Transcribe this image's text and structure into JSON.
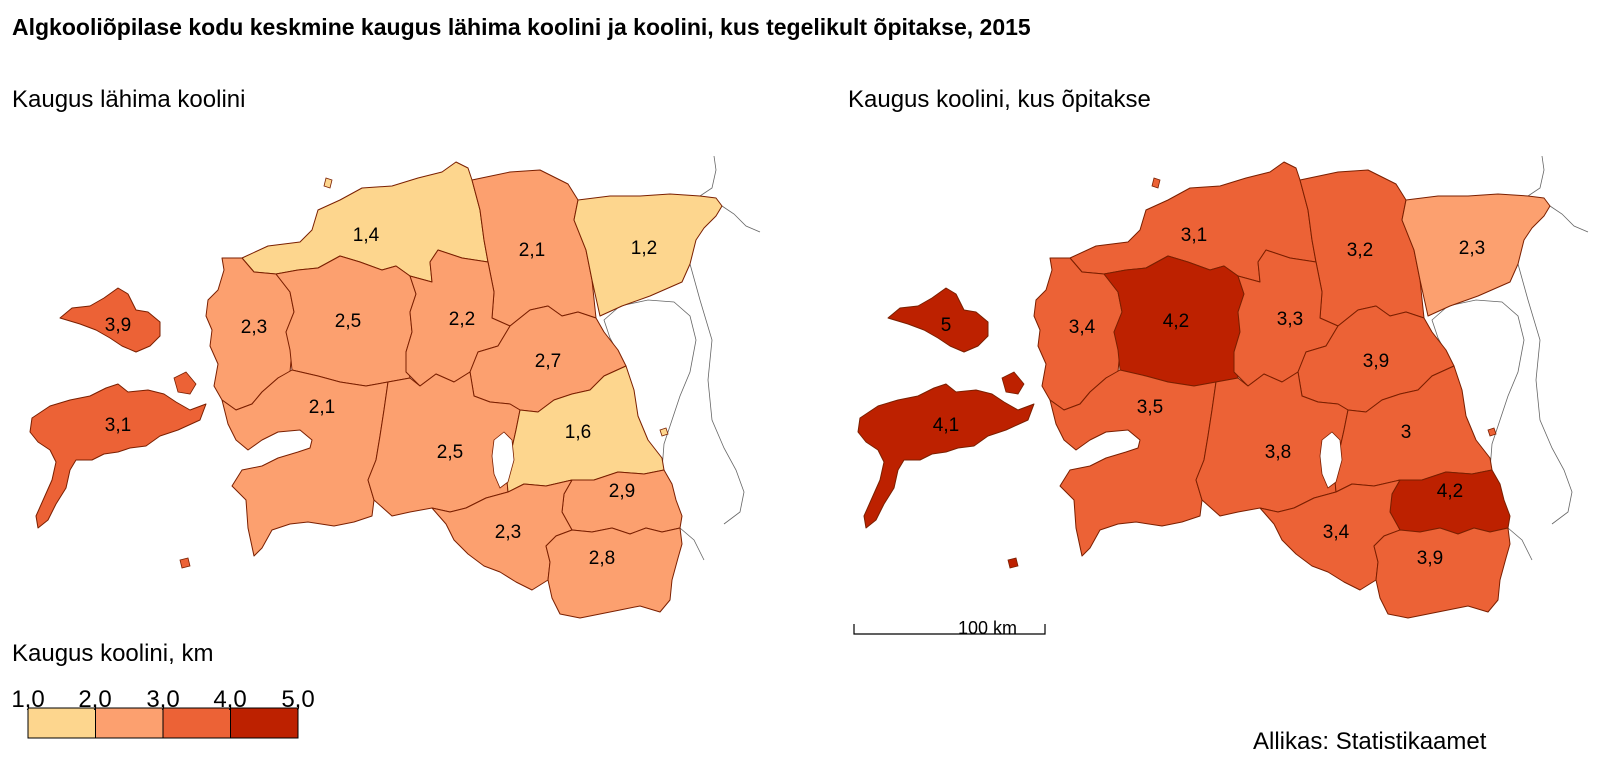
{
  "title": "Algkooliõpilase kodu keskmine kaugus lähima koolini ja koolini, kus tegelikult õpitakse, 2015",
  "colors": {
    "c1": "#fdd68e",
    "c2": "#fca06f",
    "c3": "#ec6236",
    "c4": "#bd2100",
    "border": "#7a1f00",
    "coast": "#666666"
  },
  "maps": [
    {
      "subtitle": "Kaugus lähima koolini",
      "regions": [
        {
          "name": "Harju",
          "value": "1,4",
          "class": 1
        },
        {
          "name": "Lääne-Viru",
          "value": "2,1",
          "class": 2
        },
        {
          "name": "Ida-Viru",
          "value": "1,2",
          "class": 1
        },
        {
          "name": "Hiiu",
          "value": "3,9",
          "class": 3
        },
        {
          "name": "Lääne",
          "value": "2,3",
          "class": 2
        },
        {
          "name": "Rapla",
          "value": "2,5",
          "class": 2
        },
        {
          "name": "Järva",
          "value": "2,2",
          "class": 2
        },
        {
          "name": "Jõgeva",
          "value": "2,7",
          "class": 2
        },
        {
          "name": "Saare",
          "value": "3,1",
          "class": 3
        },
        {
          "name": "Pärnu",
          "value": "2,1",
          "class": 2
        },
        {
          "name": "Viljandi",
          "value": "2,5",
          "class": 2
        },
        {
          "name": "Tartu",
          "value": "1,6",
          "class": 1
        },
        {
          "name": "Põlva",
          "value": "2,9",
          "class": 2
        },
        {
          "name": "Valga",
          "value": "2,3",
          "class": 2
        },
        {
          "name": "Võru",
          "value": "2,8",
          "class": 2
        }
      ]
    },
    {
      "subtitle": "Kaugus koolini, kus õpitakse",
      "regions": [
        {
          "name": "Harju",
          "value": "3,1",
          "class": 3
        },
        {
          "name": "Lääne-Viru",
          "value": "3,2",
          "class": 3
        },
        {
          "name": "Ida-Viru",
          "value": "2,3",
          "class": 2
        },
        {
          "name": "Hiiu",
          "value": "5",
          "class": 4
        },
        {
          "name": "Lääne",
          "value": "3,4",
          "class": 3
        },
        {
          "name": "Rapla",
          "value": "4,2",
          "class": 4
        },
        {
          "name": "Järva",
          "value": "3,3",
          "class": 3
        },
        {
          "name": "Jõgeva",
          "value": "3,9",
          "class": 3
        },
        {
          "name": "Saare",
          "value": "4,1",
          "class": 4
        },
        {
          "name": "Pärnu",
          "value": "3,5",
          "class": 3
        },
        {
          "name": "Viljandi",
          "value": "3,8",
          "class": 3
        },
        {
          "name": "Tartu",
          "value": "3",
          "class": 3
        },
        {
          "name": "Põlva",
          "value": "4,2",
          "class": 4
        },
        {
          "name": "Valga",
          "value": "3,4",
          "class": 3
        },
        {
          "name": "Võru",
          "value": "3,9",
          "class": 3
        }
      ]
    }
  ],
  "legend": {
    "title": "Kaugus koolini, km",
    "ticks": [
      "1,0",
      "2,0",
      "3,0",
      "4,0",
      "5,0"
    ]
  },
  "scale": {
    "label": "100 km"
  },
  "source": "Allikas: Statistikaamet"
}
